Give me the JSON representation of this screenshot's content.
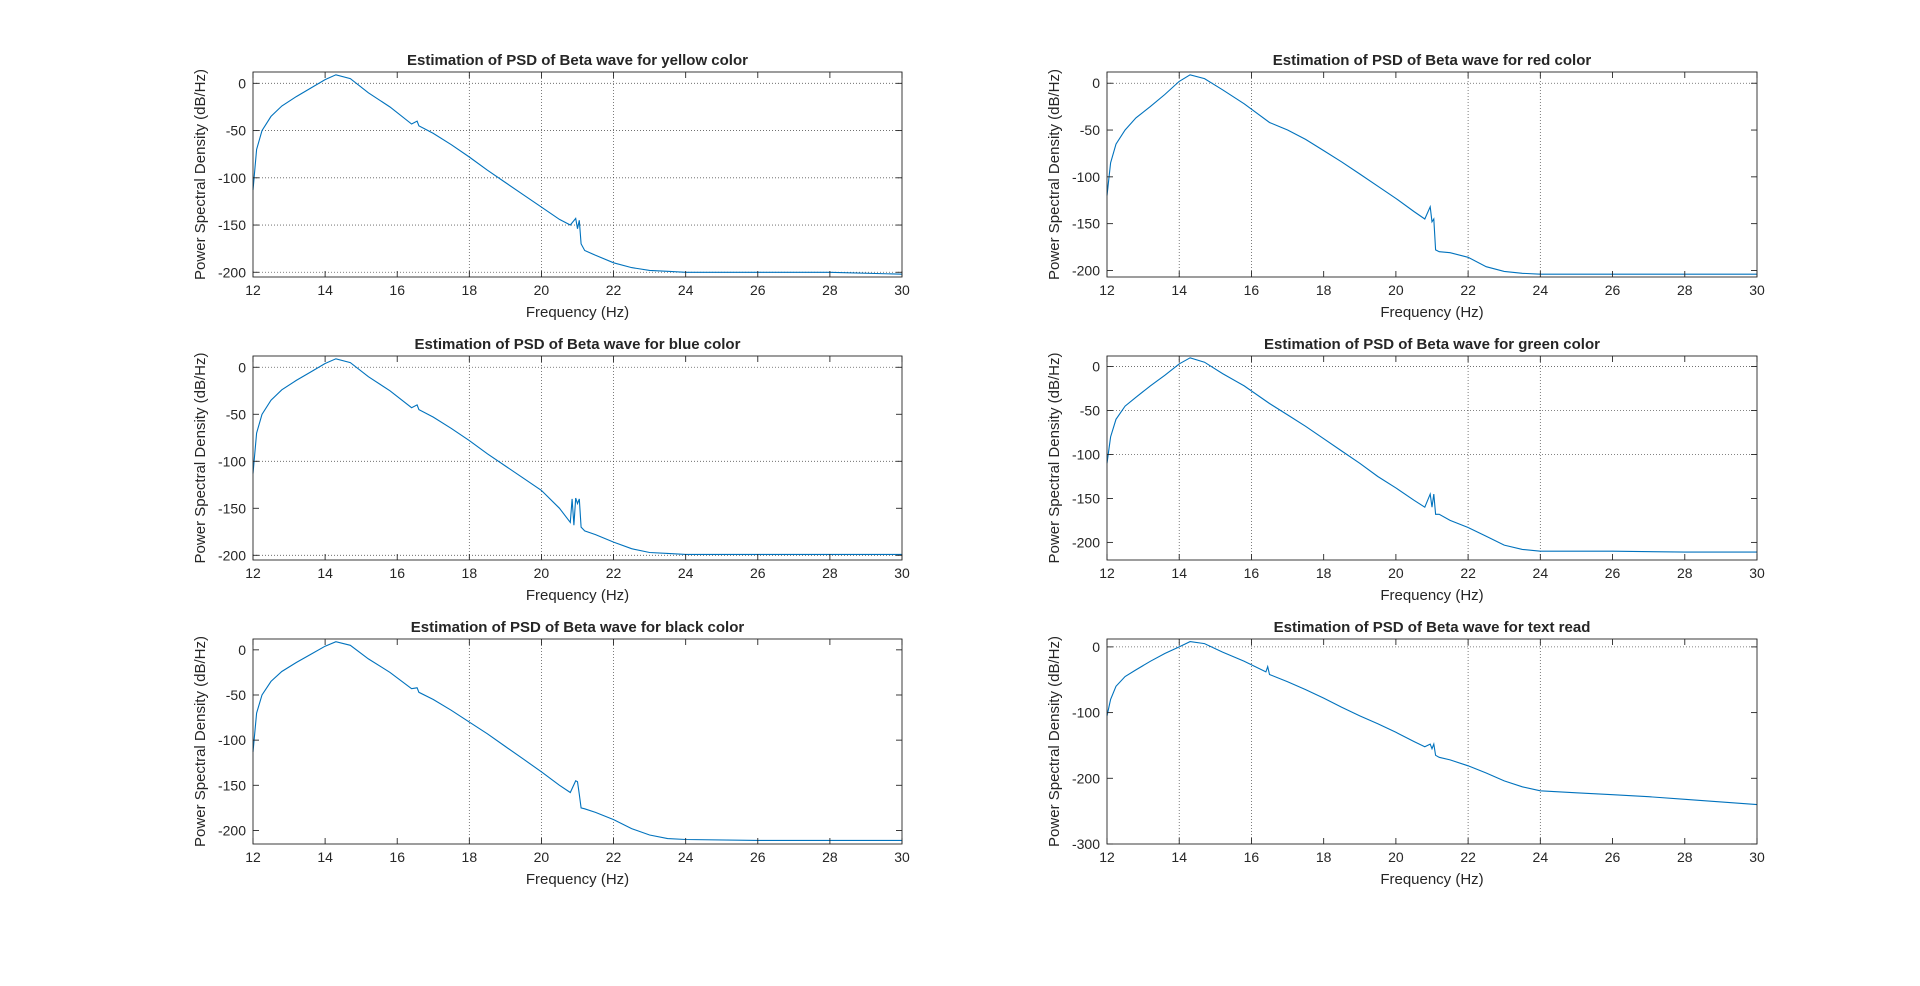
{
  "figure": {
    "background": "#ffffff",
    "line_color": "#0072BD",
    "axes_color": "#262626",
    "grid_color": "#262626"
  },
  "chart_data": [
    {
      "type": "line",
      "title": "Estimation of PSD of Beta wave for yellow color",
      "xlabel": "Frequency (Hz)",
      "ylabel": "Power Spectral Density (dB/Hz)",
      "xlim": [
        12,
        30
      ],
      "ylim": [
        -205,
        12
      ],
      "xticks": [
        12,
        14,
        16,
        18,
        20,
        22,
        24,
        26,
        28,
        30
      ],
      "yticks": [
        -200,
        -150,
        -100,
        -50,
        0
      ],
      "grid_x": [
        18,
        20,
        22
      ],
      "grid_y": [
        -200,
        -150,
        -100,
        -50,
        0
      ],
      "series": [
        {
          "x": [
            12.0,
            12.1,
            12.25,
            12.5,
            12.8,
            13.2,
            13.6,
            14.0,
            14.3,
            14.7,
            15.2,
            15.8,
            16.4,
            16.55,
            16.6,
            17.0,
            17.5,
            18.0,
            18.5,
            19.0,
            19.5,
            20.0,
            20.5,
            20.8,
            20.95,
            21.0,
            21.05,
            21.1,
            21.2,
            21.5,
            22.0,
            22.5,
            23.0,
            23.5,
            24.0,
            26.0,
            28.0,
            30.0
          ],
          "y": [
            -113,
            -70,
            -50,
            -35,
            -24,
            -14,
            -5,
            4,
            9,
            5,
            -10,
            -25,
            -43,
            -40,
            -45,
            -53,
            -65,
            -78,
            -92,
            -105,
            -118,
            -131,
            -144,
            -150,
            -143,
            -154,
            -145,
            -170,
            -177,
            -182,
            -190,
            -195,
            -198,
            -199,
            -200,
            -200,
            -200,
            -202
          ]
        }
      ]
    },
    {
      "type": "line",
      "title": "Estimation of PSD of Beta wave for red color",
      "xlabel": "Frequency (Hz)",
      "ylabel": "Power Spectral Density (dB/Hz)",
      "xlim": [
        12,
        30
      ],
      "ylim": [
        -207,
        12
      ],
      "xticks": [
        12,
        14,
        16,
        18,
        20,
        22,
        24,
        26,
        28,
        30
      ],
      "yticks": [
        -200,
        -150,
        -100,
        -50,
        0
      ],
      "grid_x": [
        14,
        16,
        22,
        24
      ],
      "grid_y": [
        0
      ],
      "series": [
        {
          "x": [
            12.0,
            12.1,
            12.25,
            12.5,
            12.8,
            13.2,
            13.6,
            14.0,
            14.3,
            14.7,
            15.2,
            15.8,
            16.5,
            17.0,
            17.5,
            18.0,
            18.5,
            19.0,
            19.5,
            20.0,
            20.5,
            20.8,
            20.95,
            21.0,
            21.05,
            21.1,
            21.2,
            21.5,
            22.0,
            22.5,
            23.0,
            23.5,
            24.0,
            26.0,
            28.0,
            30.0
          ],
          "y": [
            -120,
            -85,
            -65,
            -50,
            -37,
            -25,
            -12,
            2,
            9,
            5,
            -7,
            -22,
            -42,
            -50,
            -60,
            -72,
            -84,
            -97,
            -110,
            -123,
            -137,
            -145,
            -132,
            -148,
            -145,
            -178,
            -180,
            -181,
            -186,
            -196,
            -201,
            -203,
            -204,
            -204,
            -204,
            -204
          ]
        }
      ]
    },
    {
      "type": "line",
      "title": "Estimation of PSD of Beta wave for blue color",
      "xlabel": "Frequency (Hz)",
      "ylabel": "Power Spectral Density (dB/Hz)",
      "xlim": [
        12,
        30
      ],
      "ylim": [
        -205,
        12
      ],
      "xticks": [
        12,
        14,
        16,
        18,
        20,
        22,
        24,
        26,
        28,
        30
      ],
      "yticks": [
        -200,
        -150,
        -100,
        -50,
        0
      ],
      "grid_x": [
        18,
        20,
        22
      ],
      "grid_y": [
        -200,
        -100,
        0
      ],
      "series": [
        {
          "x": [
            12.0,
            12.1,
            12.25,
            12.5,
            12.8,
            13.2,
            13.6,
            14.0,
            14.3,
            14.7,
            15.2,
            15.8,
            16.4,
            16.55,
            16.6,
            17.0,
            17.5,
            18.0,
            18.5,
            19.0,
            19.5,
            20.0,
            20.5,
            20.8,
            20.85,
            20.9,
            20.95,
            21.0,
            21.05,
            21.1,
            21.2,
            21.5,
            22.0,
            22.5,
            23.0,
            23.5,
            24.0,
            26.0,
            28.0,
            30.0
          ],
          "y": [
            -113,
            -70,
            -50,
            -35,
            -24,
            -14,
            -5,
            4,
            9,
            5,
            -10,
            -25,
            -43,
            -40,
            -45,
            -53,
            -65,
            -78,
            -92,
            -105,
            -118,
            -131,
            -150,
            -165,
            -140,
            -168,
            -139,
            -145,
            -140,
            -170,
            -174,
            -178,
            -186,
            -193,
            -197,
            -198,
            -199,
            -199,
            -199,
            -199
          ]
        }
      ]
    },
    {
      "type": "line",
      "title": "Estimation of PSD of Beta wave for green color",
      "xlabel": "Frequency (Hz)",
      "ylabel": "Power Spectral Density (dB/Hz)",
      "xlim": [
        12,
        30
      ],
      "ylim": [
        -220,
        12
      ],
      "xticks": [
        12,
        14,
        16,
        18,
        20,
        22,
        24,
        26,
        28,
        30
      ],
      "yticks": [
        -200,
        -150,
        -100,
        -50,
        0
      ],
      "grid_x": [
        14,
        16,
        22,
        24
      ],
      "grid_y": [
        -100,
        -50,
        0
      ],
      "series": [
        {
          "x": [
            12.0,
            12.1,
            12.25,
            12.5,
            12.8,
            13.2,
            13.6,
            14.0,
            14.3,
            14.7,
            15.2,
            15.8,
            16.5,
            17.0,
            17.5,
            18.0,
            18.5,
            19.0,
            19.5,
            20.0,
            20.5,
            20.8,
            20.95,
            21.0,
            21.05,
            21.1,
            21.2,
            21.5,
            22.0,
            22.5,
            23.0,
            23.5,
            24.0,
            26.0,
            28.0,
            30.0
          ],
          "y": [
            -110,
            -80,
            -60,
            -45,
            -35,
            -22,
            -10,
            3,
            10,
            5,
            -8,
            -22,
            -42,
            -55,
            -68,
            -82,
            -96,
            -110,
            -125,
            -138,
            -152,
            -160,
            -145,
            -160,
            -145,
            -168,
            -168,
            -175,
            -183,
            -193,
            -203,
            -208,
            -210,
            -210,
            -211,
            -211
          ]
        }
      ]
    },
    {
      "type": "line",
      "title": "Estimation of PSD of Beta wave for black color",
      "xlabel": "Frequency (Hz)",
      "ylabel": "Power Spectral Density (dB/Hz)",
      "xlim": [
        12,
        30
      ],
      "ylim": [
        -215,
        12
      ],
      "xticks": [
        12,
        14,
        16,
        18,
        20,
        22,
        24,
        26,
        28,
        30
      ],
      "yticks": [
        -200,
        -150,
        -100,
        -50,
        0
      ],
      "grid_x": [
        18,
        20,
        22
      ],
      "grid_y": [],
      "series": [
        {
          "x": [
            12.0,
            12.1,
            12.25,
            12.5,
            12.8,
            13.2,
            13.6,
            14.0,
            14.3,
            14.7,
            15.2,
            15.8,
            16.4,
            16.55,
            16.6,
            17.0,
            17.5,
            18.0,
            18.5,
            19.0,
            19.5,
            20.0,
            20.5,
            20.8,
            20.95,
            21.0,
            21.05,
            21.1,
            21.2,
            21.5,
            22.0,
            22.5,
            23.0,
            23.5,
            24.0,
            26.0,
            28.0,
            30.0
          ],
          "y": [
            -113,
            -70,
            -50,
            -35,
            -24,
            -14,
            -5,
            4,
            9,
            5,
            -10,
            -25,
            -43,
            -42,
            -47,
            -55,
            -67,
            -80,
            -93,
            -107,
            -121,
            -135,
            -150,
            -158,
            -145,
            -146,
            -160,
            -175,
            -176,
            -180,
            -188,
            -198,
            -205,
            -209,
            -210,
            -211,
            -211,
            -211
          ]
        }
      ]
    },
    {
      "type": "line",
      "title": "Estimation of PSD of Beta wave for text read",
      "xlabel": "Frequency (Hz)",
      "ylabel": "Power Spectral Density (dB/Hz)",
      "xlim": [
        12,
        30
      ],
      "ylim": [
        -300,
        12
      ],
      "xticks": [
        12,
        14,
        16,
        18,
        20,
        22,
        24,
        26,
        28,
        30
      ],
      "yticks": [
        -300,
        -200,
        -100,
        0
      ],
      "grid_x": [
        14,
        16,
        22,
        24
      ],
      "grid_y": [
        0
      ],
      "series": [
        {
          "x": [
            12.0,
            12.1,
            12.25,
            12.5,
            12.8,
            13.2,
            13.6,
            14.0,
            14.3,
            14.7,
            15.2,
            15.8,
            16.4,
            16.45,
            16.5,
            17.0,
            17.5,
            18.0,
            18.5,
            19.0,
            19.5,
            20.0,
            20.5,
            20.8,
            20.95,
            21.0,
            21.05,
            21.1,
            21.2,
            21.5,
            22.0,
            22.5,
            23.0,
            23.5,
            24.0,
            25.0,
            26.0,
            27.0,
            28.0,
            29.0,
            30.0
          ],
          "y": [
            -105,
            -80,
            -60,
            -45,
            -35,
            -22,
            -10,
            0,
            8,
            5,
            -8,
            -22,
            -38,
            -30,
            -42,
            -53,
            -65,
            -78,
            -92,
            -105,
            -117,
            -130,
            -144,
            -152,
            -148,
            -155,
            -148,
            -165,
            -168,
            -172,
            -181,
            -192,
            -204,
            -213,
            -219,
            -222,
            -225,
            -228,
            -232,
            -236,
            -240
          ]
        }
      ]
    }
  ]
}
